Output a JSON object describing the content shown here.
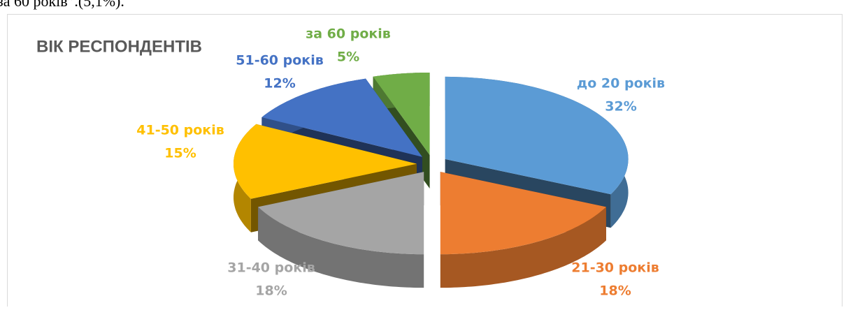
{
  "page_text": "за 60 років”.(5,1%).",
  "chart_data": {
    "type": "pie",
    "title": "ВІК РЕСПОНДЕНТІВ",
    "categories": [
      "до 20 років",
      "21-30 років",
      "31-40 років",
      "41-50 років",
      "51-60 років",
      "за 60 років"
    ],
    "values": [
      32,
      18,
      18,
      15,
      12,
      5
    ],
    "value_labels": [
      "32%",
      "18%",
      "18%",
      "15%",
      "12%",
      "5%"
    ],
    "colors": [
      "#5b9bd5",
      "#ed7d31",
      "#a5a5a5",
      "#ffc000",
      "#4472c4",
      "#70ad47"
    ]
  }
}
